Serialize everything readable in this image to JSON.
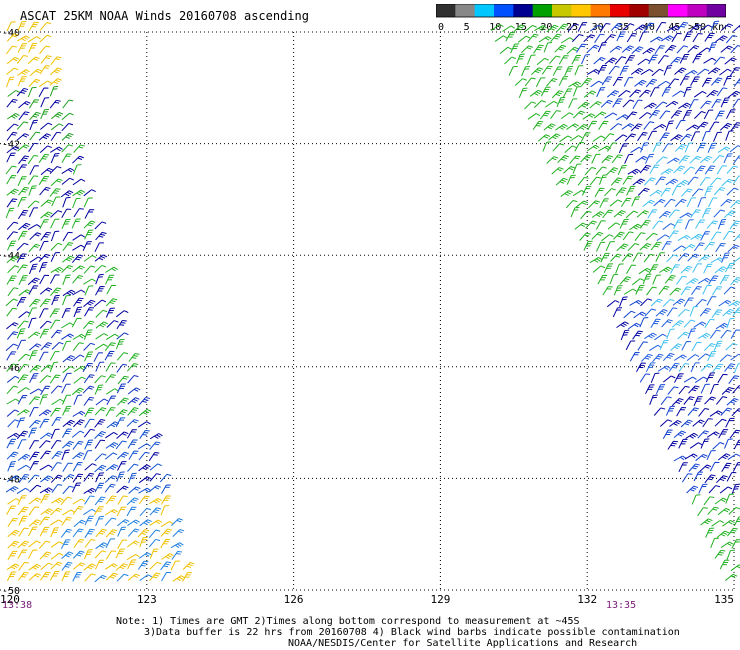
{
  "header": {
    "title": "ASCAT 25KM NOAA Winds 20160708 ascending"
  },
  "legend": {
    "labels": [
      "0",
      "5",
      "10",
      "15",
      "20",
      "25",
      "30",
      "35",
      "40",
      "45",
      ">50 knots"
    ],
    "colors": [
      "#303030",
      "#888888",
      "#00c8ff",
      "#0050ff",
      "#000090",
      "#00a000",
      "#c8c800",
      "#ffc800",
      "#ff7800",
      "#e80000",
      "#a00000",
      "#7a5030",
      "#ff00ff",
      "#c000c0",
      "#7000a0"
    ]
  },
  "axes": {
    "lat_labels": [
      "-40",
      "-42",
      "-44",
      "-46",
      "-48",
      "-50"
    ],
    "lon_labels": [
      "120",
      "123",
      "126",
      "129",
      "132",
      "135"
    ],
    "lat_range": [
      -50,
      -40
    ],
    "lon_range": [
      120,
      135
    ],
    "grid": "dotted"
  },
  "swath_times": {
    "left": "13:38",
    "right": "13:35"
  },
  "notes": {
    "line1": "Note: 1) Times are GMT 2)Times along bottom correspond to measurement at ~45S",
    "line2": "3)Data buffer is 22 hrs from 20160708 4) Black wind barbs indicate possible contamination",
    "line3": "NOAA/NESDIS/Center for Satellite Applications and Research"
  }
}
